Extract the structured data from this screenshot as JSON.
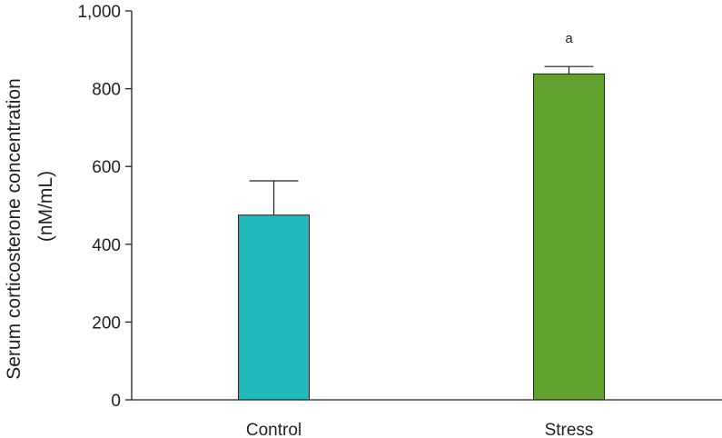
{
  "chart_data": {
    "type": "bar",
    "categories": [
      "Control",
      "Stress"
    ],
    "values": [
      475,
      838
    ],
    "errors": [
      88,
      19
    ],
    "colors": [
      "#22b9bd",
      "#60a22d"
    ],
    "annotations": [
      "",
      "a"
    ],
    "ylabel_line1": "Serum corticosterone concentration",
    "ylabel_line2": "(nM/mL)",
    "xlabel": "",
    "title": "",
    "ylim": [
      0,
      1000
    ],
    "yticks": [
      0,
      200,
      400,
      600,
      800,
      1000
    ],
    "ytick_labels": [
      "0",
      "200",
      "400",
      "600",
      "800",
      "1,000"
    ],
    "grid": false,
    "legend": "none"
  }
}
